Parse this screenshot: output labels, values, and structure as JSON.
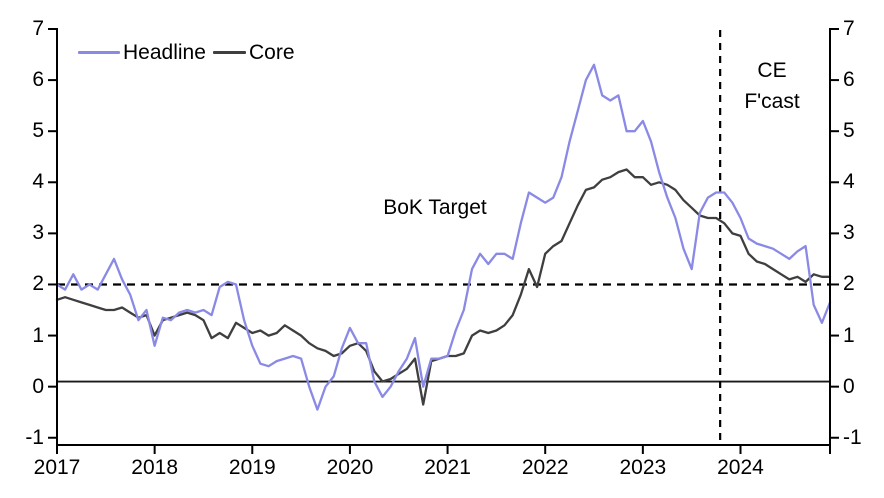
{
  "chart": {
    "legend_items": [
      {
        "label": "Headline",
        "color": "#8a8ae6"
      },
      {
        "label": "Core",
        "color": "#3f3f3f"
      }
    ],
    "annotations": {
      "target_label": "BoK Target",
      "forecast_line1": "CE",
      "forecast_line2": "F'cast"
    }
  },
  "chart_data": {
    "type": "line",
    "title": "",
    "xlabel": "",
    "ylabel": "",
    "frequency": "monthly",
    "x_start": "2017-01",
    "x_end": "2024-12",
    "ylim": [
      -1,
      7
    ],
    "grid": false,
    "legend_position": "top-left",
    "y_ticks": [
      7,
      6,
      5,
      4,
      3,
      2,
      1,
      0,
      -1
    ],
    "x_tick_labels": [
      "2017",
      "2018",
      "2019",
      "2020",
      "2021",
      "2022",
      "2023",
      "2024"
    ],
    "x_tick_month_indices": [
      0,
      12,
      24,
      36,
      48,
      60,
      72,
      84
    ],
    "reference_lines": {
      "bok_target_value": 2,
      "zero_line_value": 0.1,
      "forecast_divider_month_index": 81.5
    },
    "series": [
      {
        "name": "Core",
        "color": "#3f3f3f",
        "values": [
          1.7,
          1.75,
          1.7,
          1.65,
          1.6,
          1.55,
          1.5,
          1.5,
          1.55,
          1.45,
          1.35,
          1.4,
          1.0,
          1.3,
          1.35,
          1.4,
          1.45,
          1.4,
          1.3,
          0.95,
          1.05,
          0.95,
          1.25,
          1.15,
          1.05,
          1.1,
          1.0,
          1.05,
          1.2,
          1.1,
          1.0,
          0.85,
          0.75,
          0.7,
          0.6,
          0.65,
          0.8,
          0.85,
          0.7,
          0.3,
          0.1,
          0.15,
          0.25,
          0.35,
          0.55,
          -0.35,
          0.5,
          0.55,
          0.6,
          0.6,
          0.65,
          1.0,
          1.1,
          1.05,
          1.1,
          1.2,
          1.4,
          1.8,
          2.3,
          1.95,
          2.6,
          2.75,
          2.85,
          3.2,
          3.55,
          3.85,
          3.9,
          4.05,
          4.1,
          4.2,
          4.25,
          4.1,
          4.1,
          3.95,
          4.0,
          3.95,
          3.85,
          3.65,
          3.5,
          3.35,
          3.3,
          3.3,
          3.2,
          3.0,
          2.95,
          2.6,
          2.45,
          2.4,
          2.3,
          2.2,
          2.1,
          2.15,
          2.05,
          2.2,
          2.15,
          2.15
        ]
      },
      {
        "name": "Headline",
        "color": "#8a8ae6",
        "values": [
          2.0,
          1.9,
          2.2,
          1.9,
          2.0,
          1.9,
          2.2,
          2.5,
          2.1,
          1.8,
          1.3,
          1.5,
          0.8,
          1.35,
          1.3,
          1.45,
          1.5,
          1.45,
          1.5,
          1.4,
          1.95,
          2.05,
          2.0,
          1.3,
          0.8,
          0.45,
          0.4,
          0.5,
          0.55,
          0.6,
          0.55,
          0.0,
          -0.45,
          0.0,
          0.2,
          0.75,
          1.15,
          0.85,
          0.85,
          0.1,
          -0.2,
          0.0,
          0.3,
          0.55,
          0.95,
          0.0,
          0.55,
          0.55,
          0.6,
          1.1,
          1.5,
          2.3,
          2.6,
          2.4,
          2.6,
          2.6,
          2.5,
          3.2,
          3.8,
          3.7,
          3.6,
          3.7,
          4.1,
          4.8,
          5.4,
          6.0,
          6.3,
          5.7,
          5.6,
          5.7,
          5.0,
          5.0,
          5.2,
          4.8,
          4.2,
          3.7,
          3.3,
          2.7,
          2.3,
          3.4,
          3.7,
          3.8,
          3.8,
          3.6,
          3.3,
          2.9,
          2.8,
          2.75,
          2.7,
          2.6,
          2.5,
          2.65,
          2.75,
          1.6,
          1.25,
          1.65
        ]
      }
    ]
  }
}
